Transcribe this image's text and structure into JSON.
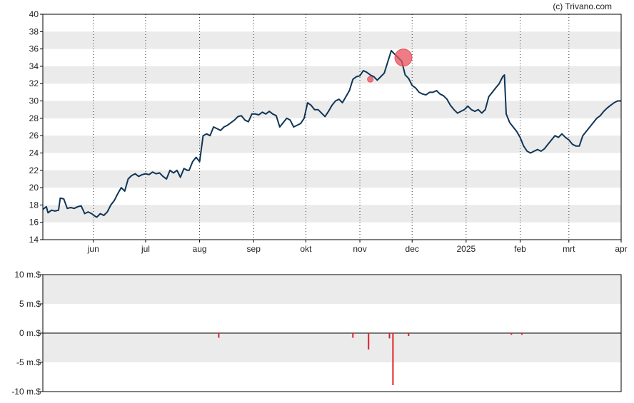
{
  "copyright": "(c) Trivano.com",
  "colors": {
    "price_line": "#0f3557",
    "band": "#ebebeb",
    "marker": "#e8505b",
    "volume_bar": "#e0202a",
    "axis": "#000000"
  },
  "chart_data": [
    {
      "type": "line",
      "title": "",
      "ylim": [
        14,
        40
      ],
      "y_ticks": [
        14,
        16,
        18,
        20,
        22,
        24,
        26,
        28,
        30,
        32,
        34,
        36,
        38,
        40
      ],
      "grid": "horizontal bands every 2, dotted vertical lines at month starts",
      "x_range_days": [
        0,
        332
      ],
      "x_ticks": [
        {
          "label": "jun",
          "day": 29
        },
        {
          "label": "jul",
          "day": 59
        },
        {
          "label": "aug",
          "day": 90
        },
        {
          "label": "sep",
          "day": 121
        },
        {
          "label": "okt",
          "day": 151
        },
        {
          "label": "nov",
          "day": 182
        },
        {
          "label": "dec",
          "day": 212
        },
        {
          "label": "2025",
          "day": 243
        },
        {
          "label": "feb",
          "day": 274
        },
        {
          "label": "mrt",
          "day": 302
        },
        {
          "label": "apr",
          "day": 333
        }
      ],
      "series": [
        {
          "name": "",
          "points": [
            [
              0,
              17.5
            ],
            [
              2,
              17.8
            ],
            [
              3,
              17.1
            ],
            [
              5,
              17.4
            ],
            [
              7,
              17.3
            ],
            [
              9,
              17.4
            ],
            [
              10,
              18.8
            ],
            [
              12,
              18.7
            ],
            [
              14,
              17.6
            ],
            [
              16,
              17.7
            ],
            [
              18,
              17.6
            ],
            [
              20,
              17.8
            ],
            [
              22,
              17.9
            ],
            [
              24,
              17.0
            ],
            [
              26,
              17.2
            ],
            [
              28,
              17.0
            ],
            [
              30,
              16.7
            ],
            [
              31,
              16.6
            ],
            [
              33,
              17.0
            ],
            [
              35,
              16.8
            ],
            [
              37,
              17.2
            ],
            [
              39,
              18.0
            ],
            [
              41,
              18.5
            ],
            [
              43,
              19.3
            ],
            [
              45,
              20.0
            ],
            [
              47,
              19.6
            ],
            [
              49,
              21.0
            ],
            [
              51,
              21.4
            ],
            [
              53,
              21.6
            ],
            [
              55,
              21.3
            ],
            [
              57,
              21.5
            ],
            [
              59,
              21.6
            ],
            [
              61,
              21.5
            ],
            [
              63,
              21.8
            ],
            [
              65,
              21.6
            ],
            [
              67,
              21.7
            ],
            [
              69,
              21.3
            ],
            [
              71,
              21.0
            ],
            [
              73,
              22.0
            ],
            [
              75,
              21.7
            ],
            [
              77,
              22.0
            ],
            [
              79,
              21.2
            ],
            [
              81,
              22.2
            ],
            [
              83,
              22.0
            ],
            [
              84,
              22.0
            ],
            [
              86,
              23.0
            ],
            [
              88,
              23.5
            ],
            [
              90,
              23.0
            ],
            [
              92,
              26.0
            ],
            [
              94,
              26.2
            ],
            [
              96,
              26.0
            ],
            [
              98,
              27.0
            ],
            [
              100,
              26.8
            ],
            [
              102,
              26.6
            ],
            [
              104,
              27.0
            ],
            [
              106,
              27.2
            ],
            [
              108,
              27.5
            ],
            [
              110,
              27.8
            ],
            [
              112,
              28.2
            ],
            [
              114,
              28.3
            ],
            [
              116,
              27.8
            ],
            [
              118,
              27.6
            ],
            [
              120,
              28.5
            ],
            [
              122,
              28.5
            ],
            [
              124,
              28.4
            ],
            [
              126,
              28.7
            ],
            [
              128,
              28.5
            ],
            [
              130,
              28.8
            ],
            [
              132,
              28.5
            ],
            [
              134,
              28.3
            ],
            [
              136,
              27.0
            ],
            [
              138,
              27.5
            ],
            [
              140,
              28.0
            ],
            [
              142,
              27.8
            ],
            [
              144,
              27.0
            ],
            [
              146,
              27.2
            ],
            [
              148,
              27.4
            ],
            [
              150,
              28.0
            ],
            [
              152,
              29.8
            ],
            [
              154,
              29.5
            ],
            [
              156,
              29.0
            ],
            [
              158,
              29.0
            ],
            [
              160,
              28.6
            ],
            [
              162,
              28.2
            ],
            [
              164,
              28.8
            ],
            [
              166,
              29.5
            ],
            [
              168,
              30.0
            ],
            [
              170,
              30.2
            ],
            [
              172,
              29.8
            ],
            [
              174,
              30.5
            ],
            [
              176,
              31.2
            ],
            [
              178,
              32.5
            ],
            [
              180,
              32.8
            ],
            [
              182,
              32.9
            ],
            [
              184,
              33.5
            ],
            [
              186,
              33.3
            ],
            [
              188,
              33.0
            ],
            [
              190,
              32.8
            ],
            [
              192,
              32.4
            ],
            [
              194,
              32.8
            ],
            [
              196,
              33.2
            ],
            [
              198,
              34.5
            ],
            [
              200,
              35.8
            ],
            [
              202,
              35.4
            ],
            [
              204,
              35.0
            ],
            [
              206,
              34.6
            ],
            [
              208,
              33.0
            ],
            [
              210,
              32.6
            ],
            [
              212,
              31.8
            ],
            [
              214,
              31.5
            ],
            [
              216,
              31.0
            ],
            [
              218,
              30.8
            ],
            [
              220,
              30.7
            ],
            [
              222,
              31.0
            ],
            [
              224,
              31.0
            ],
            [
              226,
              31.2
            ],
            [
              228,
              30.8
            ],
            [
              230,
              30.6
            ],
            [
              232,
              30.2
            ],
            [
              234,
              29.5
            ],
            [
              236,
              29.0
            ],
            [
              238,
              28.6
            ],
            [
              240,
              28.8
            ],
            [
              242,
              29.0
            ],
            [
              244,
              29.4
            ],
            [
              246,
              29.0
            ],
            [
              248,
              28.8
            ],
            [
              250,
              29.0
            ],
            [
              252,
              28.6
            ],
            [
              254,
              29.0
            ],
            [
              256,
              30.5
            ],
            [
              258,
              31.0
            ],
            [
              260,
              31.5
            ],
            [
              262,
              32.0
            ],
            [
              264,
              32.8
            ],
            [
              265,
              33.0
            ],
            [
              266,
              28.5
            ],
            [
              268,
              27.5
            ],
            [
              270,
              27.0
            ],
            [
              272,
              26.5
            ],
            [
              274,
              25.8
            ],
            [
              276,
              24.8
            ],
            [
              278,
              24.2
            ],
            [
              280,
              24.0
            ],
            [
              282,
              24.2
            ],
            [
              284,
              24.4
            ],
            [
              286,
              24.2
            ],
            [
              288,
              24.5
            ],
            [
              290,
              25.0
            ],
            [
              292,
              25.5
            ],
            [
              294,
              26.0
            ],
            [
              296,
              25.8
            ],
            [
              298,
              26.2
            ],
            [
              300,
              25.8
            ],
            [
              302,
              25.5
            ],
            [
              304,
              25.0
            ],
            [
              306,
              24.8
            ],
            [
              308,
              24.8
            ],
            [
              310,
              26.0
            ],
            [
              312,
              26.5
            ],
            [
              314,
              27.0
            ],
            [
              316,
              27.5
            ],
            [
              318,
              28.0
            ],
            [
              320,
              28.3
            ],
            [
              322,
              28.8
            ],
            [
              324,
              29.2
            ],
            [
              326,
              29.5
            ],
            [
              328,
              29.8
            ],
            [
              330,
              30.0
            ],
            [
              332,
              30.0
            ]
          ]
        }
      ],
      "markers": [
        {
          "day": 188,
          "value": 32.5,
          "size": "small"
        },
        {
          "day": 207,
          "value": 35.0,
          "size": "large"
        }
      ]
    },
    {
      "type": "bar",
      "title": "",
      "ylim": [
        -10,
        10
      ],
      "y_ticks": [
        {
          "value": 10,
          "label": "10 m.$"
        },
        {
          "value": 5,
          "label": "5 m.$"
        },
        {
          "value": 0,
          "label": "0 m.$"
        },
        {
          "value": -5,
          "label": "-5 m.$"
        },
        {
          "value": -10,
          "label": "-10 m.$"
        }
      ],
      "series": [
        {
          "name": "",
          "bars": [
            {
              "day": 101,
              "value": -0.8
            },
            {
              "day": 178,
              "value": -0.8
            },
            {
              "day": 187,
              "value": -2.8
            },
            {
              "day": 199,
              "value": -0.9
            },
            {
              "day": 201,
              "value": -8.9
            },
            {
              "day": 210,
              "value": -0.5
            },
            {
              "day": 269,
              "value": -0.3
            },
            {
              "day": 275,
              "value": -0.3
            }
          ]
        }
      ]
    }
  ]
}
